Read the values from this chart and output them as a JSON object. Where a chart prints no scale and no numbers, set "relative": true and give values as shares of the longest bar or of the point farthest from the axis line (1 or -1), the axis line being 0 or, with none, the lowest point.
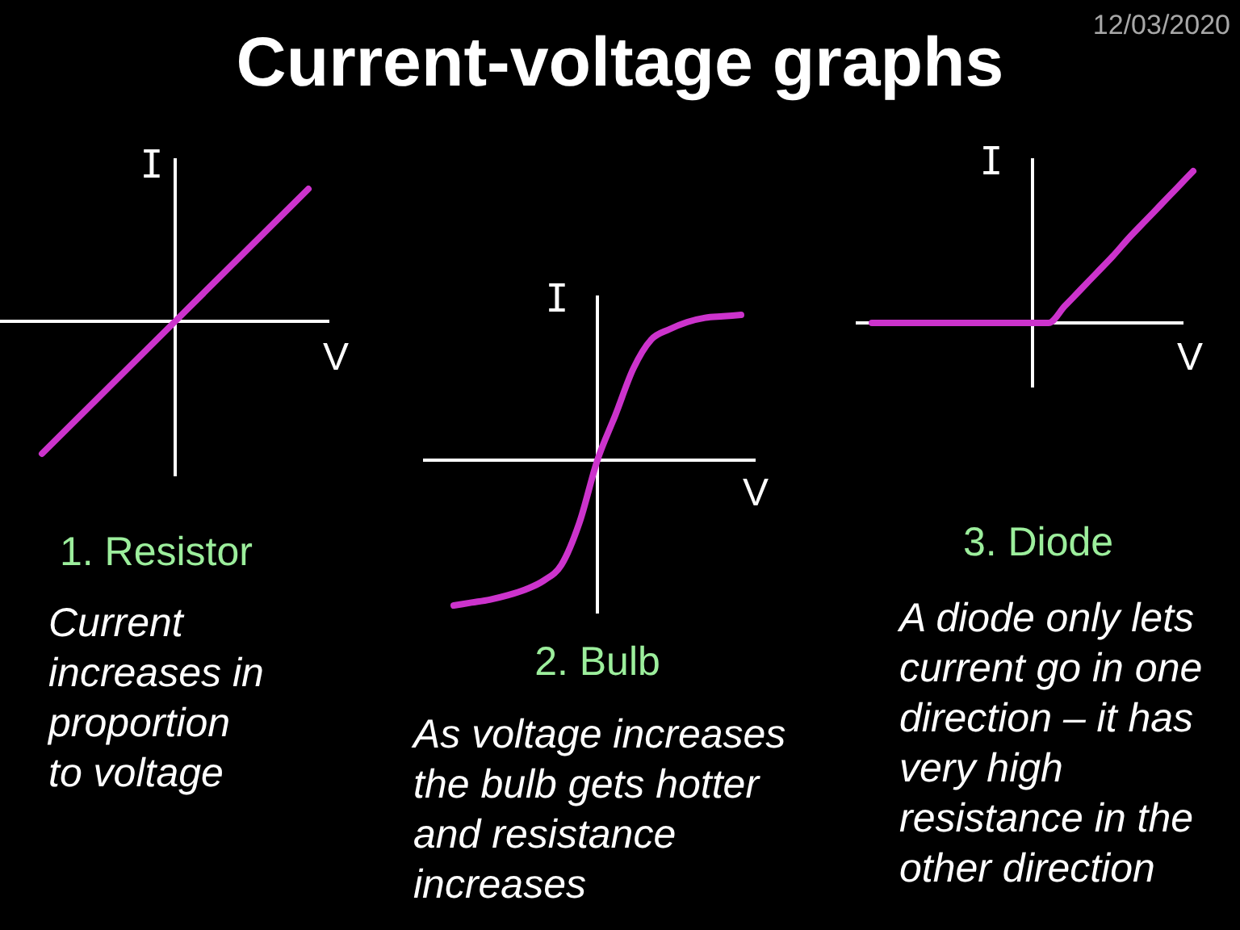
{
  "chart_data": [
    {
      "type": "other",
      "title": "Current-voltage graphs",
      "annotations": [
        "12/03/2020"
      ]
    },
    {
      "type": "line",
      "title": "1. Resistor",
      "xlabel": "V",
      "ylabel": "I",
      "categories": [
        null,
        null,
        null
      ],
      "values": [
        -1,
        0,
        1
      ],
      "color": "#cc33cc",
      "relative": true,
      "annotations": [
        "Current\nincreases in\nproportion\nto voltage"
      ]
    },
    {
      "type": "line",
      "title": "2. Bulb",
      "xlabel": "V",
      "ylabel": "I",
      "categories": [
        null,
        null,
        null,
        null,
        null,
        null,
        null,
        null,
        null,
        null,
        null,
        null,
        null,
        null,
        null,
        null,
        null
      ],
      "values": [
        -1,
        -0.98,
        -0.96,
        -0.93,
        -0.89,
        -0.83,
        -0.72,
        -0.43,
        0,
        0.31,
        0.63,
        0.83,
        0.9,
        0.95,
        0.98,
        0.99,
        1
      ],
      "color": "#cc33cc",
      "relative": true,
      "annotations": [
        "As voltage increases\nthe bulb gets hotter\nand resistance\nincreases"
      ]
    },
    {
      "type": "line",
      "title": "3. Diode",
      "xlabel": "V",
      "ylabel": "I",
      "categories": [
        null,
        null,
        null,
        null,
        null,
        null,
        null,
        null,
        null,
        null,
        null,
        null,
        null,
        null,
        null,
        null,
        null,
        null,
        null,
        null,
        null
      ],
      "values": [
        0,
        0,
        0,
        0,
        0,
        0,
        0,
        0,
        0,
        0,
        0,
        0,
        0.11,
        0.22,
        0.33,
        0.44,
        0.56,
        0.67,
        0.78,
        0.89,
        1
      ],
      "color": "#cc33cc",
      "relative": true,
      "annotations": [
        "A diode only lets\ncurrent go in one\ndirection – it has\nvery high\nresistance in the\nother direction"
      ]
    }
  ]
}
